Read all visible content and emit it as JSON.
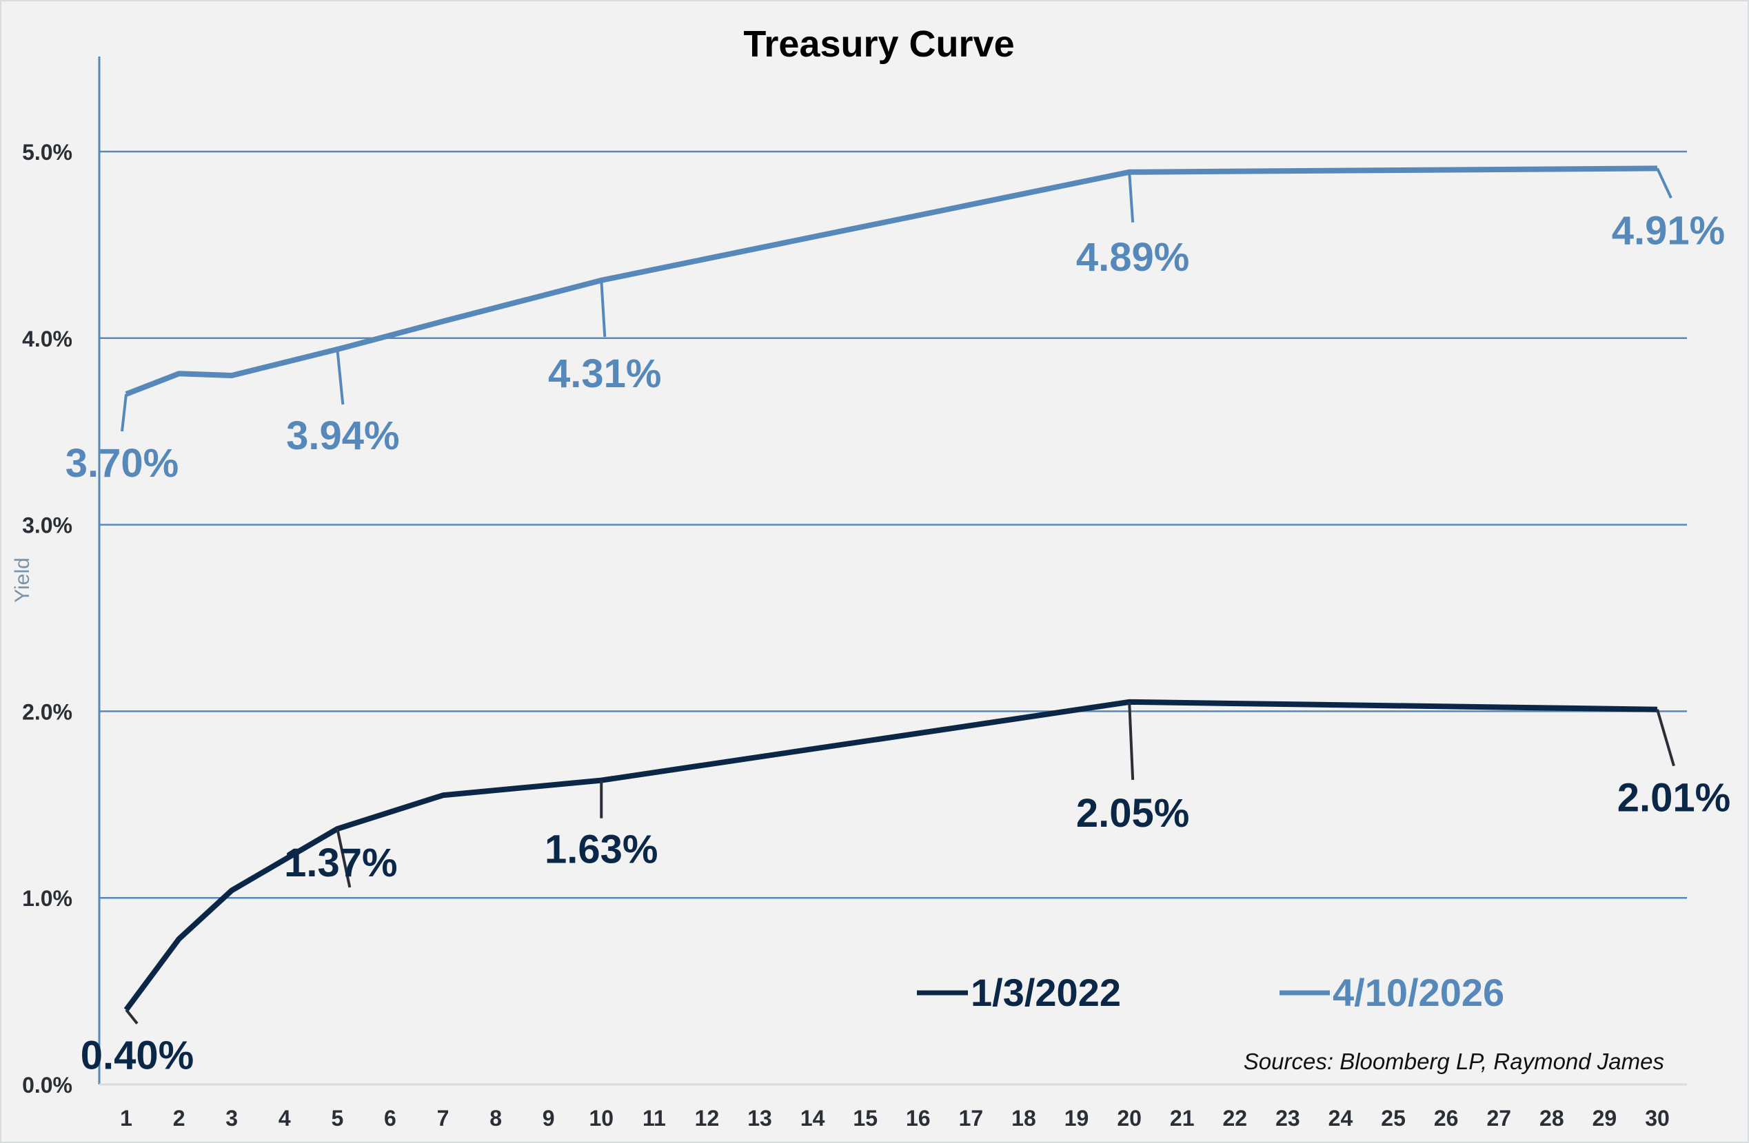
{
  "chart_data": {
    "type": "line",
    "title": "Treasury Curve",
    "xlabel": "",
    "ylabel": "Yield",
    "x_ticks": [
      1,
      2,
      3,
      4,
      5,
      6,
      7,
      8,
      9,
      10,
      11,
      12,
      13,
      14,
      15,
      16,
      17,
      18,
      19,
      20,
      21,
      22,
      23,
      24,
      25,
      26,
      27,
      28,
      29,
      30
    ],
    "xlim": [
      1,
      30
    ],
    "ylim": [
      0,
      5
    ],
    "y_ticks": [
      "0.0%",
      "1.0%",
      "2.0%",
      "3.0%",
      "4.0%",
      "5.0%"
    ],
    "y_tick_values": [
      0,
      1,
      2,
      3,
      4,
      5
    ],
    "grid": "horizontal",
    "legend_position": "bottom-right",
    "series": [
      {
        "name": "1/3/2022",
        "color": "#0b2748",
        "x": [
          1,
          2,
          3,
          5,
          7,
          10,
          20,
          30
        ],
        "y": [
          0.4,
          0.78,
          1.04,
          1.37,
          1.55,
          1.63,
          2.05,
          2.01
        ],
        "labels": [
          {
            "x": 1,
            "text": "0.40%"
          },
          {
            "x": 5,
            "text": "1.37%"
          },
          {
            "x": 10,
            "text": "1.63%"
          },
          {
            "x": 20,
            "text": "2.05%"
          },
          {
            "x": 30,
            "text": "2.01%"
          }
        ]
      },
      {
        "name": "4/10/2026",
        "color": "#5689b9",
        "x": [
          1,
          2,
          3,
          5,
          7,
          10,
          20,
          30
        ],
        "y": [
          3.7,
          3.81,
          3.8,
          3.94,
          4.09,
          4.31,
          4.89,
          4.91
        ],
        "labels": [
          {
            "x": 1,
            "text": "3.70%"
          },
          {
            "x": 5,
            "text": "3.94%"
          },
          {
            "x": 10,
            "text": "4.31%"
          },
          {
            "x": 20,
            "text": "4.89%"
          },
          {
            "x": 30,
            "text": "4.91%"
          }
        ]
      }
    ],
    "source_note": "Sources: Bloomberg LP, Raymond James"
  }
}
